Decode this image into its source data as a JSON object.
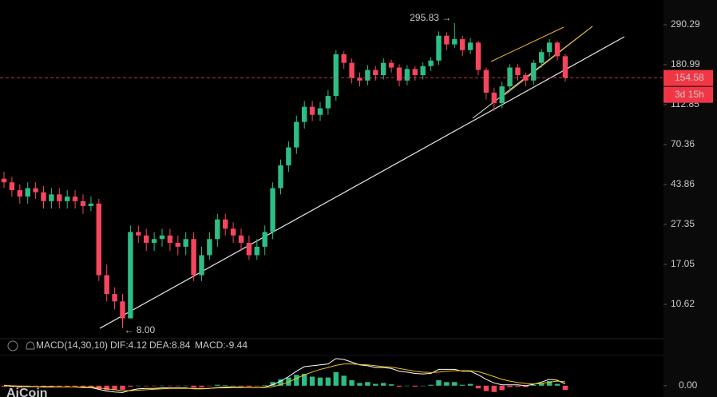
{
  "chart_data": [
    {
      "type": "candlestick",
      "log_scale": true,
      "ylim": [
        7.01,
        389
      ],
      "yticks": [
        10.62,
        17.05,
        27.35,
        43.86,
        70.36,
        112.85,
        180.99,
        290.29
      ],
      "up_color": "#2ebd85",
      "down_color": "#f6465d",
      "open": [
        47,
        45,
        41,
        38,
        42,
        40,
        36,
        39,
        36,
        38,
        36,
        34,
        35,
        15,
        12,
        11,
        9,
        25,
        24,
        22,
        23,
        24,
        22,
        21,
        23,
        15,
        19,
        23,
        29,
        26,
        24,
        22,
        19,
        21,
        25,
        42,
        55,
        68,
        92,
        110,
        100,
        108,
        125,
        205,
        185,
        155,
        150,
        170,
        160,
        185,
        175,
        150,
        172,
        160,
        178,
        190,
        255,
        230,
        245,
        215,
        235,
        170,
        130,
        115,
        140,
        175,
        160,
        150,
        185,
        210,
        235,
        200
      ],
      "high": [
        51,
        48,
        44,
        45,
        45,
        43,
        42,
        42,
        41,
        41,
        39,
        38,
        37,
        17,
        13,
        12,
        27,
        27,
        26,
        25,
        26,
        26,
        24,
        25,
        25,
        21,
        25,
        31,
        31,
        28,
        26,
        24,
        23,
        27,
        45,
        59,
        73,
        99,
        118,
        118,
        116,
        134,
        215,
        212,
        195,
        165,
        180,
        178,
        195,
        192,
        182,
        180,
        178,
        186,
        198,
        268,
        265,
        295.83,
        255,
        248,
        240,
        175,
        138,
        148,
        182,
        182,
        165,
        192,
        218,
        245,
        240,
        205
      ],
      "low": [
        42,
        38,
        35,
        35,
        37,
        33,
        33,
        33,
        33,
        33,
        31,
        32,
        14,
        11,
        10,
        8,
        9,
        22,
        20,
        20,
        21,
        20,
        19,
        19,
        14,
        14,
        18,
        21,
        24,
        22,
        20,
        18,
        18,
        19,
        23,
        39,
        51,
        63,
        85,
        93,
        93,
        100,
        118,
        172,
        145,
        140,
        142,
        150,
        152,
        165,
        140,
        142,
        150,
        152,
        168,
        180,
        215,
        220,
        200,
        205,
        160,
        120,
        105,
        108,
        132,
        150,
        140,
        142,
        175,
        198,
        190,
        148
      ],
      "close": [
        45,
        41,
        38,
        42,
        40,
        36,
        39,
        36,
        38,
        36,
        34,
        35,
        15,
        12,
        11,
        9,
        25,
        24,
        22,
        23,
        24,
        22,
        21,
        23,
        15,
        19,
        23,
        29,
        26,
        24,
        22,
        19,
        21,
        25,
        42,
        55,
        68,
        92,
        110,
        100,
        108,
        125,
        205,
        185,
        155,
        150,
        170,
        160,
        185,
        175,
        150,
        172,
        160,
        178,
        190,
        255,
        230,
        245,
        215,
        235,
        170,
        130,
        115,
        140,
        175,
        160,
        150,
        185,
        210,
        235,
        200,
        155
      ],
      "last_price": 154.58,
      "countdown": "3d 15h",
      "annotations": [
        "295.83 →",
        "← 8.00"
      ]
    },
    {
      "type": "macd",
      "title": "MACD(14,30,10)",
      "legend": [
        "DIF:4.12",
        "DEA:8.84",
        "MACD:-9.44"
      ],
      "ylim": [
        -25,
        65
      ],
      "yticks": [
        {
          "value": 0,
          "label": "0.00"
        }
      ],
      "hist": [
        -2,
        -3,
        -4,
        -2,
        -2,
        -3,
        -2,
        -3,
        -2,
        -2,
        -3,
        -3,
        -8,
        -10,
        -10,
        -9,
        -2,
        0,
        -1,
        -1,
        0,
        -1,
        -1,
        0,
        -4,
        -3,
        -1,
        2,
        1,
        0,
        -1,
        -2,
        -1,
        1,
        8,
        14,
        18,
        24,
        26,
        20,
        18,
        18,
        30,
        22,
        12,
        6,
        8,
        4,
        6,
        3,
        -2,
        0,
        -2,
        0,
        2,
        12,
        8,
        8,
        2,
        4,
        -6,
        -12,
        -14,
        -10,
        -3,
        -2,
        -3,
        2,
        6,
        10,
        4,
        -9.44
      ],
      "dif": [
        0,
        -1,
        -2,
        -2,
        -2,
        -3,
        -3,
        -3,
        -3,
        -3,
        -4,
        -4,
        -8,
        -12,
        -14,
        -15,
        -10,
        -7,
        -6,
        -6,
        -5,
        -5,
        -5,
        -5,
        -7,
        -7,
        -6,
        -4,
        -3,
        -3,
        -3,
        -4,
        -4,
        -3,
        2,
        10,
        20,
        32,
        42,
        44,
        46,
        48,
        60,
        58,
        52,
        46,
        44,
        40,
        40,
        38,
        32,
        30,
        27,
        26,
        27,
        36,
        36,
        36,
        32,
        32,
        24,
        14,
        6,
        2,
        2,
        2,
        0,
        3,
        8,
        14,
        12,
        4.12
      ],
      "dea": [
        1,
        0,
        -1,
        -1,
        -2,
        -2,
        -2,
        -3,
        -3,
        -3,
        -3,
        -3,
        -5,
        -7,
        -9,
        -11,
        -11,
        -10,
        -9,
        -8,
        -7,
        -6,
        -6,
        -6,
        -6,
        -6,
        -6,
        -5,
        -5,
        -4,
        -4,
        -4,
        -4,
        -4,
        -2,
        2,
        8,
        16,
        24,
        30,
        36,
        40,
        45,
        48,
        48,
        47,
        46,
        44,
        42,
        41,
        38,
        35,
        32,
        30,
        29,
        30,
        32,
        33,
        33,
        33,
        31,
        26,
        20,
        14,
        10,
        7,
        5,
        4,
        5,
        8,
        10,
        8.84
      ],
      "dif_color": "#ffffff",
      "dea_color": "#f0c419",
      "pos_color": "#2ebd85",
      "neg_color": "#f6465d"
    }
  ],
  "logo": "AiCoin"
}
